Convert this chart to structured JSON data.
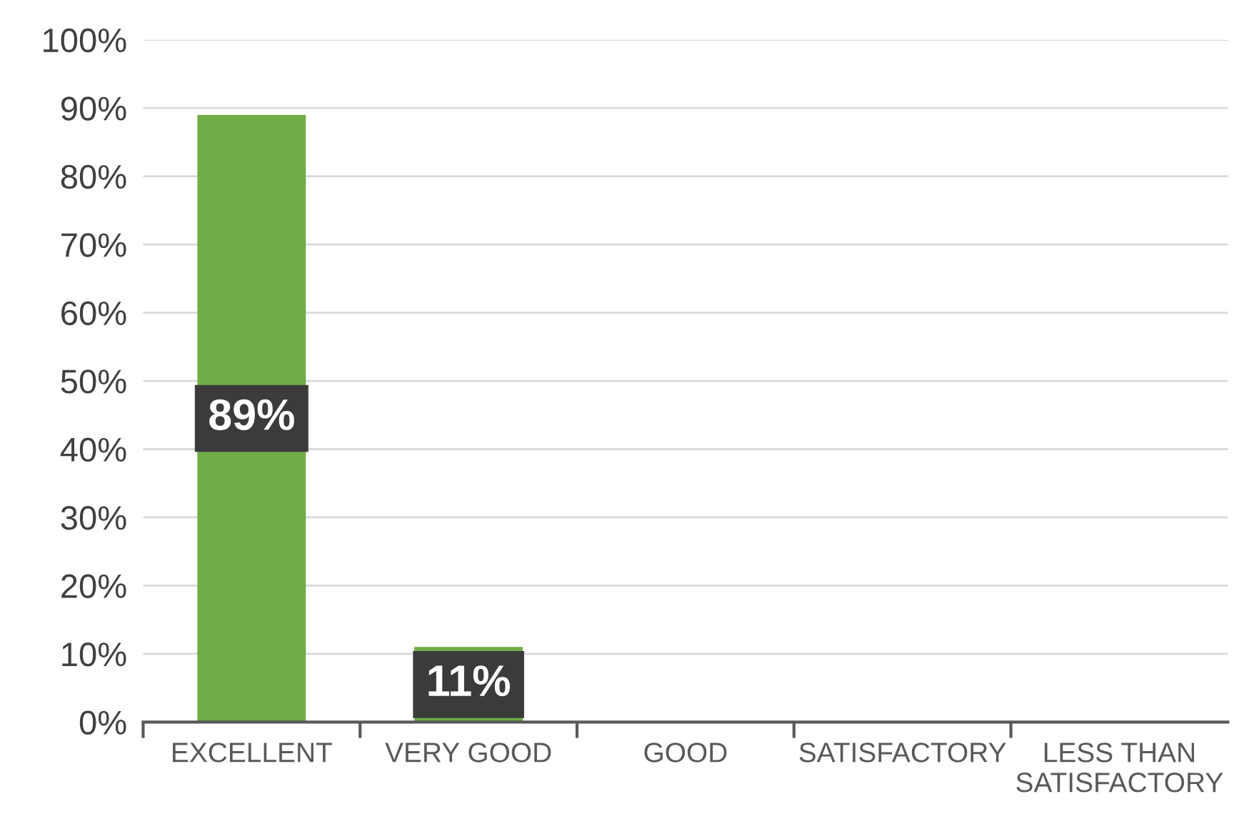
{
  "chart_data": {
    "type": "bar",
    "categories": [
      "EXCELLENT",
      "VERY GOOD",
      "GOOD",
      "SATISFACTORY",
      "LESS THAN\nSATISFACTORY"
    ],
    "values": [
      89,
      11,
      0,
      0,
      0
    ],
    "color": "#70ad47",
    "value_labels": [
      "89%",
      "11%",
      null,
      null,
      null
    ],
    "ylim": [
      0,
      100
    ],
    "yticks": [
      {
        "value": 0,
        "label": "0%"
      },
      {
        "value": 10,
        "label": "10%"
      },
      {
        "value": 20,
        "label": "20%"
      },
      {
        "value": 30,
        "label": "30%"
      },
      {
        "value": 40,
        "label": "40%"
      },
      {
        "value": 50,
        "label": "50%"
      },
      {
        "value": 60,
        "label": "60%"
      },
      {
        "value": 70,
        "label": "70%"
      },
      {
        "value": 80,
        "label": "80%"
      },
      {
        "value": 90,
        "label": "90%"
      },
      {
        "value": 100,
        "label": "100%"
      }
    ],
    "grid": "y",
    "legend": false
  }
}
